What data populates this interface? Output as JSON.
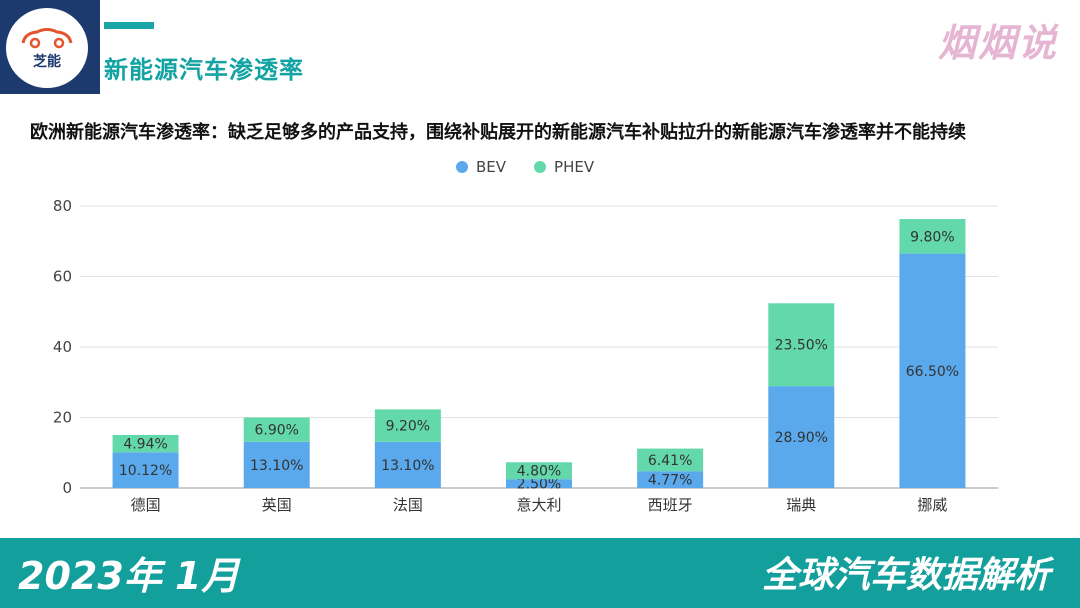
{
  "header": {
    "logo_text": "芝能",
    "title": "新能源汽车渗透率",
    "brand": "烟烟说"
  },
  "subtitle": "欧洲新能源汽车渗透率：缺乏足够多的产品支持，围绕补贴展开的新能源汽车补贴拉升的新能源汽车渗透率并不能持续",
  "colors": {
    "bev": "#5aa9ec",
    "phev": "#63d9ab",
    "teal": "#139f9c",
    "navy": "#1d3a6e"
  },
  "chart_data": {
    "type": "bar",
    "stacked": true,
    "categories": [
      "德国",
      "英国",
      "法国",
      "意大利",
      "西班牙",
      "瑞典",
      "挪威"
    ],
    "series": [
      {
        "name": "BEV",
        "values": [
          10.12,
          13.1,
          13.1,
          2.5,
          4.77,
          28.9,
          66.5
        ],
        "labels": [
          "10.12%",
          "13.10%",
          "13.10%",
          "2.50%",
          "4.77%",
          "28.90%",
          "66.50%"
        ]
      },
      {
        "name": "PHEV",
        "values": [
          4.94,
          6.9,
          9.2,
          4.8,
          6.41,
          23.5,
          9.8
        ],
        "labels": [
          "4.94%",
          "6.90%",
          "9.20%",
          "4.80%",
          "6.41%",
          "23.50%",
          "9.80%"
        ]
      }
    ],
    "yticks": [
      "0",
      "20",
      "40",
      "60",
      "80"
    ],
    "ylim": [
      0,
      80
    ],
    "grid": true,
    "legend": "top-center"
  },
  "footer": {
    "date": "2023年 1月",
    "tagline": "全球汽车数据解析"
  }
}
